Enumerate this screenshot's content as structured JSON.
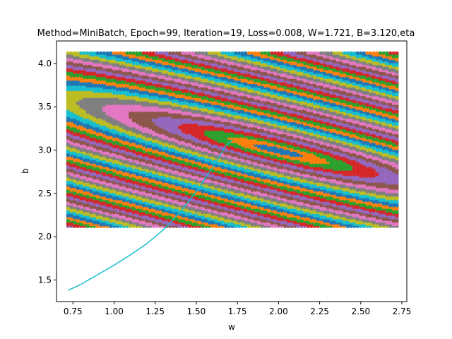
{
  "chart_data": {
    "type": "scatter",
    "title": "Method=MiniBatch, Epoch=99, Iteration=19, Loss=0.008, W=1.721, B=3.120,eta",
    "xlabel": "w",
    "ylabel": "b",
    "xlim": [
      0.65,
      2.78
    ],
    "ylim": [
      1.25,
      4.26
    ],
    "xticks": [
      "0.75",
      "1.00",
      "1.25",
      "1.50",
      "1.75",
      "2.00",
      "2.25",
      "2.50",
      "2.75"
    ],
    "yticks": [
      "1.5",
      "2.0",
      "2.5",
      "3.0",
      "3.5",
      "4.0"
    ],
    "grid": false,
    "loss_surface": {
      "w_range": [
        0.72,
        2.72
      ],
      "b_range": [
        2.12,
        4.12
      ],
      "minimum": {
        "w": 2.0,
        "b": 3.0
      },
      "palette": [
        "#1f77b4",
        "#ff7f0e",
        "#2ca02c",
        "#d62728",
        "#9467bd",
        "#8c564b",
        "#e377c2",
        "#7f7f7f",
        "#bcbd22",
        "#17becf"
      ]
    },
    "trajectory": {
      "color": "#17becf",
      "points": [
        {
          "w": 0.72,
          "b": 1.38
        },
        {
          "w": 0.8,
          "b": 1.45
        },
        {
          "w": 0.9,
          "b": 1.56
        },
        {
          "w": 1.0,
          "b": 1.67
        },
        {
          "w": 1.1,
          "b": 1.79
        },
        {
          "w": 1.2,
          "b": 1.92
        },
        {
          "w": 1.3,
          "b": 2.08
        },
        {
          "w": 1.4,
          "b": 2.28
        },
        {
          "w": 1.5,
          "b": 2.52
        },
        {
          "w": 1.6,
          "b": 2.8
        },
        {
          "w": 1.68,
          "b": 3.05
        },
        {
          "w": 1.721,
          "b": 3.12
        }
      ]
    }
  }
}
